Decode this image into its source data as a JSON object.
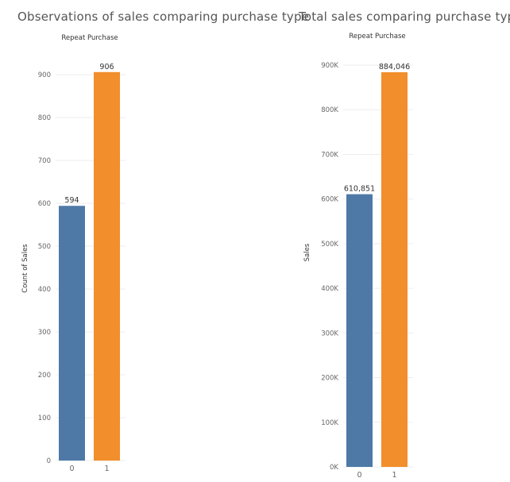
{
  "chart_data": [
    {
      "type": "bar",
      "title": "Observations of sales comparing purchase type",
      "header": "Repeat Purchase",
      "ylabel": "Count of Sales",
      "categories": [
        "0",
        "1"
      ],
      "values": [
        594,
        906
      ],
      "data_labels": [
        "594",
        "906"
      ],
      "ylim": [
        0,
        950
      ],
      "yticks": [
        0,
        100,
        200,
        300,
        400,
        500,
        600,
        700,
        800,
        900
      ],
      "ytick_labels": [
        "0",
        "100",
        "200",
        "300",
        "400",
        "500",
        "600",
        "700",
        "800",
        "900"
      ],
      "colors": [
        "#4e79a7",
        "#f28e2b"
      ],
      "grid": true
    },
    {
      "type": "bar",
      "title": "Total sales comparing purchase type",
      "header": "Repeat Purchase",
      "ylabel": "Sales",
      "categories": [
        "0",
        "1"
      ],
      "values": [
        610851,
        884046
      ],
      "data_labels": [
        "610,851",
        "884,046"
      ],
      "ylim": [
        0,
        950000
      ],
      "yticks": [
        0,
        100000,
        200000,
        300000,
        400000,
        500000,
        600000,
        700000,
        800000,
        900000
      ],
      "ytick_labels": [
        "0K",
        "100K",
        "200K",
        "300K",
        "400K",
        "500K",
        "600K",
        "700K",
        "800K",
        "900K"
      ],
      "colors": [
        "#4e79a7",
        "#f28e2b"
      ],
      "grid": true
    }
  ]
}
